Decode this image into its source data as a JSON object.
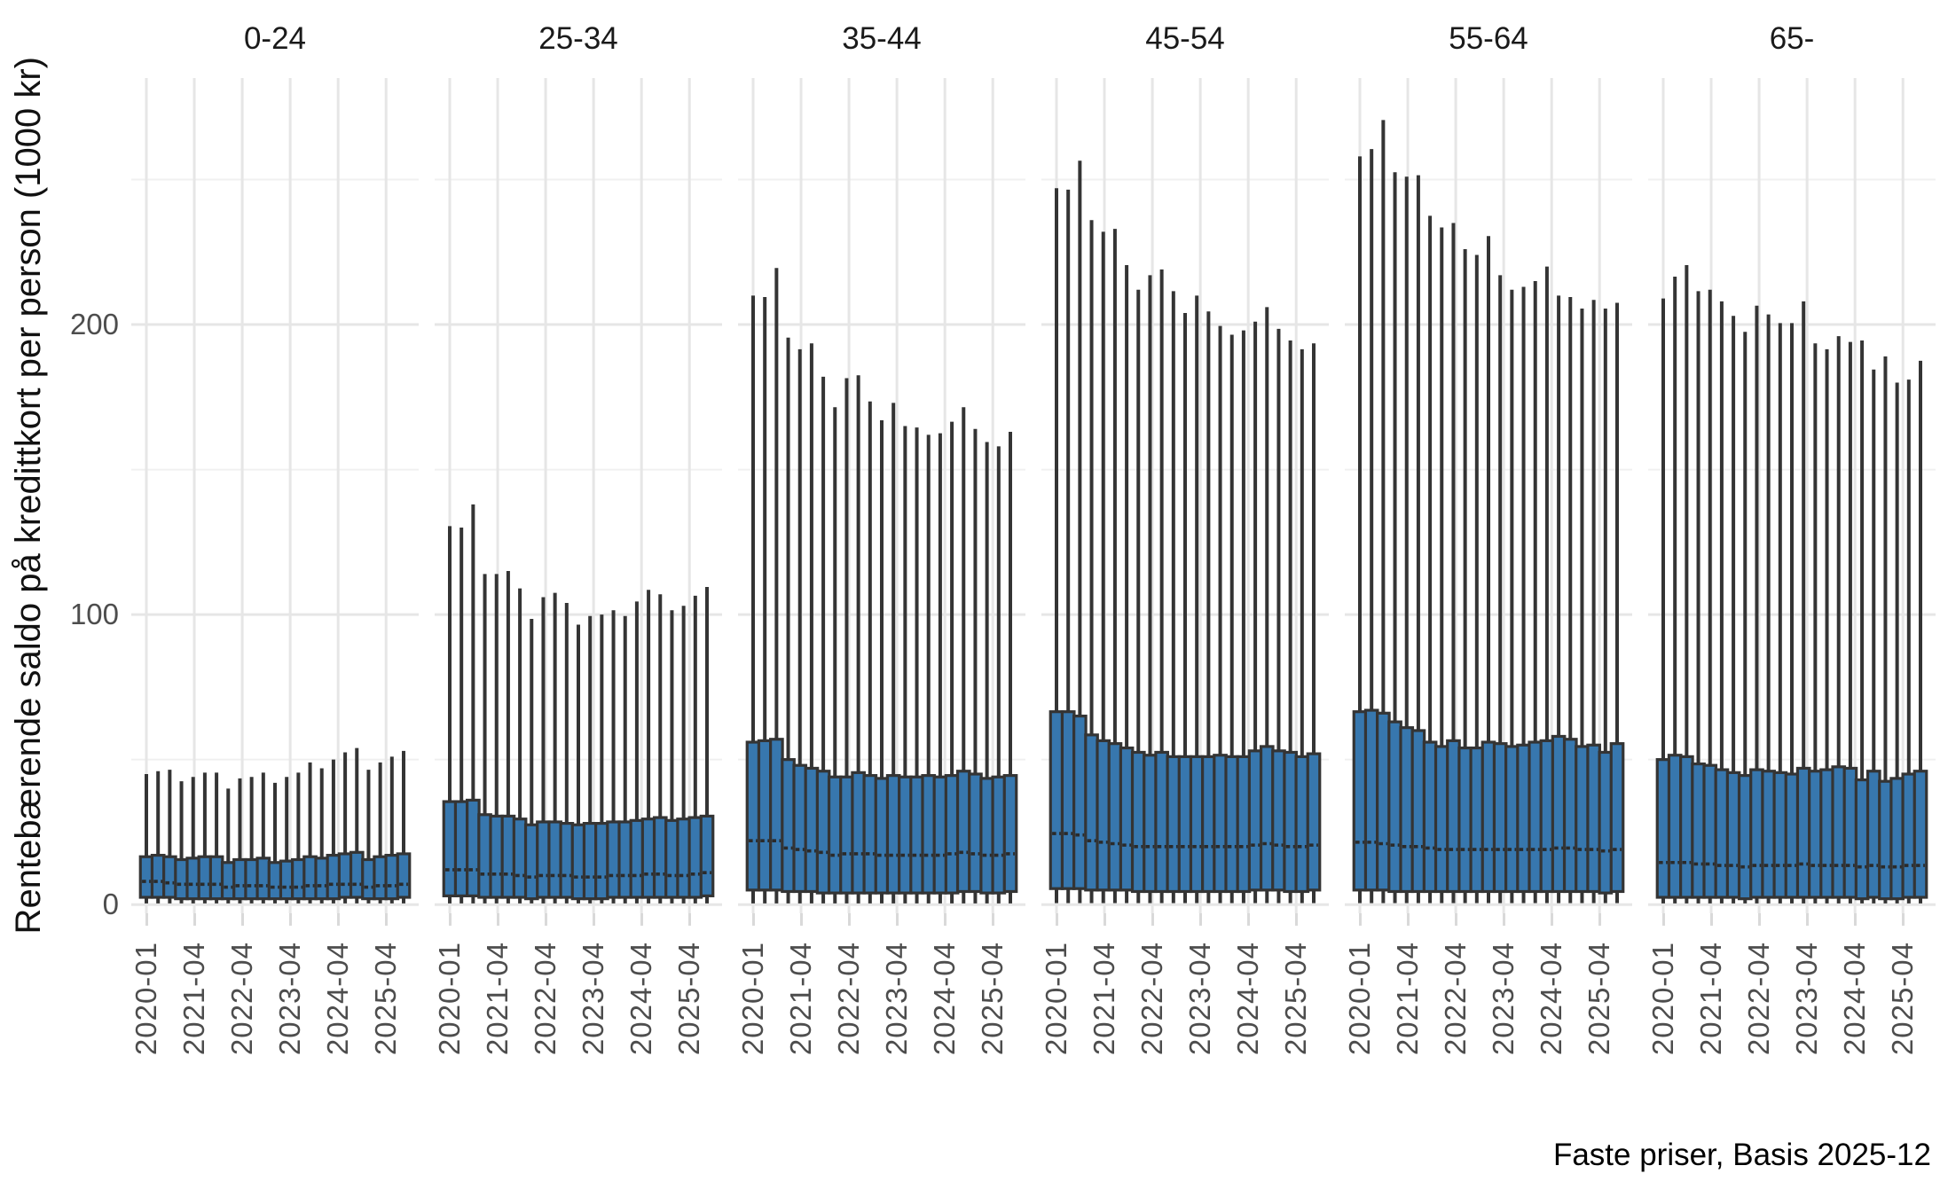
{
  "y_axis": {
    "title": "Rentebærende saldo på kredittkort per person (1000 kr)",
    "ticks": [
      {
        "label": "0",
        "value": 0
      },
      {
        "label": "100",
        "value": 100
      },
      {
        "label": "200",
        "value": 200
      }
    ],
    "minor_gridlines": [
      50,
      150,
      250
    ],
    "range": [
      -3,
      285
    ]
  },
  "x_axis": {
    "tick_labels": [
      "2020-01",
      "2021-04",
      "2022-04",
      "2023-04",
      "2024-04",
      "2025-04"
    ],
    "tick_positions": [
      0,
      4.1,
      8.2,
      12.3,
      16.4,
      20.5
    ]
  },
  "caption": "Faste priser, Basis 2025-12",
  "colors": {
    "box_fill": "#3777ae",
    "box_border": "#343434",
    "whisker": "#343434",
    "median": "#2a2a2a",
    "grid_major": "#e6e6e6",
    "grid_minor": "#f0f0f0",
    "tick_mark": "#d9d9d9",
    "axis_text": "#4d4d4d",
    "title_text": "#1a1a1a",
    "background": "#ffffff"
  },
  "chart_data": {
    "type": "boxplot",
    "title": "",
    "xlabel": "",
    "ylabel": "Rentebærende saldo på kredittkort per person (1000 kr)",
    "grid": true,
    "quarters": [
      "2020-01",
      "2020-04",
      "2020-07",
      "2020-10",
      "2021-01",
      "2021-04",
      "2021-07",
      "2021-10",
      "2022-01",
      "2022-04",
      "2022-07",
      "2022-10",
      "2023-01",
      "2023-04",
      "2023-07",
      "2023-10",
      "2024-01",
      "2024-04",
      "2024-07",
      "2024-10",
      "2025-01",
      "2025-04",
      "2025-07"
    ],
    "facets": [
      {
        "label": "0-24",
        "high": [
          45,
          46,
          46.5,
          42.5,
          44,
          45.5,
          45.5,
          40,
          43.5,
          44,
          45.5,
          42,
          44,
          45.5,
          49,
          47,
          50,
          52.5,
          54,
          46.5,
          49,
          51,
          53
        ],
        "q3": [
          16.5,
          17,
          16.5,
          15.5,
          16,
          16.5,
          16.5,
          14.5,
          15.5,
          15.5,
          16,
          14.5,
          15,
          15.5,
          16.5,
          16,
          17,
          17.5,
          18,
          15.5,
          16.5,
          17,
          17.5
        ],
        "median": [
          8,
          8,
          7.5,
          7,
          7,
          7,
          7,
          6,
          6.5,
          6.5,
          6.5,
          6,
          6,
          6,
          6.5,
          6.5,
          7,
          7,
          7,
          6,
          6.5,
          6.5,
          7
        ],
        "q1": [
          2.5,
          2.5,
          2.5,
          2,
          2,
          2,
          2,
          2,
          2,
          2,
          2,
          2,
          2,
          2,
          2,
          2,
          2,
          2.5,
          2.5,
          2,
          2,
          2,
          2.5
        ],
        "low": 0.4
      },
      {
        "label": "25-34",
        "high": [
          130.5,
          130,
          138,
          114,
          114,
          115,
          109,
          98.5,
          106,
          107.5,
          104,
          96.5,
          99.5,
          100,
          101.5,
          99.5,
          104.5,
          108.5,
          107,
          101.5,
          103,
          106.5,
          109.5
        ],
        "q3": [
          35.5,
          35.5,
          36,
          31,
          30.5,
          30.5,
          29.5,
          27.5,
          28.5,
          28.5,
          28,
          27.5,
          28,
          28,
          28.5,
          28.5,
          29,
          29.5,
          30,
          29,
          29.5,
          30,
          30.5
        ],
        "median": [
          12,
          12,
          12,
          10.5,
          10.5,
          10.5,
          10,
          9.5,
          10,
          10,
          10,
          9.5,
          9.5,
          9.5,
          10,
          10,
          10,
          10.5,
          10.5,
          10,
          10,
          10.5,
          11
        ],
        "q1": [
          3,
          3,
          3,
          2.5,
          2.5,
          2.5,
          2.5,
          2,
          2.5,
          2.5,
          2.5,
          2,
          2,
          2,
          2.5,
          2.5,
          2.5,
          2.5,
          2.5,
          2.5,
          2.5,
          2.5,
          3
        ],
        "low": 0.4
      },
      {
        "label": "35-44",
        "high": [
          210,
          209.5,
          219.5,
          195.5,
          191.5,
          193.5,
          182,
          171.5,
          181.5,
          182.5,
          173.5,
          167,
          173,
          165,
          164.5,
          162,
          162.5,
          166.5,
          171.5,
          164,
          159.5,
          158,
          163
        ],
        "q3": [
          56,
          56.5,
          57,
          50,
          48,
          47,
          46,
          44,
          44,
          45.5,
          44.5,
          43.5,
          44.5,
          44,
          44,
          44.5,
          44,
          44.5,
          46,
          45,
          43.5,
          44,
          44.5
        ],
        "median": [
          22,
          22,
          22,
          19.5,
          19,
          18.5,
          18,
          17,
          17.5,
          17.5,
          17.5,
          17,
          17,
          17,
          17,
          17,
          17,
          17.5,
          18,
          17.5,
          17,
          17,
          17.5
        ],
        "q1": [
          5,
          5,
          5,
          4.5,
          4.5,
          4.5,
          4,
          4,
          4,
          4,
          4,
          4,
          4,
          4,
          4,
          4,
          4,
          4,
          4.5,
          4.5,
          4,
          4,
          4.5
        ],
        "low": 0.4
      },
      {
        "label": "45-54",
        "high": [
          247,
          246.5,
          256.5,
          236,
          232,
          233,
          220.5,
          212,
          217,
          219,
          211.5,
          204,
          210,
          204.5,
          199.5,
          196.5,
          198,
          201,
          206,
          198.5,
          194.5,
          191.5,
          193.5
        ],
        "q3": [
          66.5,
          66.5,
          65,
          58.5,
          56.5,
          55.5,
          54,
          52.5,
          51.5,
          52.5,
          51,
          51,
          51,
          51,
          51.5,
          51,
          51,
          53,
          54.5,
          53,
          52.5,
          51,
          52
        ],
        "median": [
          24.5,
          24.5,
          24,
          22,
          21.5,
          21,
          20.5,
          20,
          20,
          20,
          20,
          20,
          20,
          20,
          20,
          20,
          20,
          20.5,
          21,
          20.5,
          20,
          20,
          20.5
        ],
        "q1": [
          5.5,
          5.5,
          5.5,
          5,
          5,
          5,
          5,
          4.5,
          4.5,
          4.5,
          4.5,
          4.5,
          4.5,
          4.5,
          4.5,
          4.5,
          4.5,
          5,
          5,
          5,
          4.5,
          4.5,
          5
        ],
        "low": 0.5
      },
      {
        "label": "55-64",
        "high": [
          258,
          260.5,
          270.5,
          252.5,
          251,
          251.5,
          237.5,
          233.5,
          235,
          226,
          224,
          230.5,
          217,
          212,
          213,
          215,
          220,
          210,
          209.5,
          205.5,
          208.5,
          205.5,
          207.5
        ],
        "q3": [
          66.5,
          67,
          66,
          63,
          61,
          60,
          56,
          54.5,
          56.5,
          54,
          54,
          56,
          55.5,
          54.5,
          55,
          56,
          56.5,
          58,
          57,
          54.5,
          55,
          52.5,
          55.5
        ],
        "median": [
          21.5,
          21.5,
          21,
          20.5,
          20,
          20,
          19.5,
          19,
          19,
          19,
          19,
          19,
          19,
          19,
          19,
          19,
          19,
          19.5,
          19.5,
          19,
          19,
          18.5,
          19
        ],
        "q1": [
          5,
          5,
          5,
          4.5,
          4.5,
          4.5,
          4.5,
          4.5,
          4.5,
          4.5,
          4.5,
          4.5,
          4.5,
          4.5,
          4.5,
          4.5,
          4.5,
          4.5,
          4.5,
          4.5,
          4.5,
          4,
          4.5
        ],
        "low": 0.5
      },
      {
        "label": "65-",
        "high": [
          209,
          216.5,
          220.5,
          211.5,
          212,
          208,
          203,
          197.5,
          206.5,
          203.5,
          200.5,
          200.5,
          208,
          193.5,
          191.5,
          196,
          194,
          194.5,
          184.5,
          189,
          180,
          181,
          187.5
        ],
        "q3": [
          50,
          51.5,
          51,
          48.5,
          48,
          46.5,
          45.5,
          44.5,
          46.5,
          46,
          45.5,
          45,
          47,
          46,
          46.5,
          47.5,
          47,
          43,
          46,
          42.5,
          43.5,
          45,
          46
        ],
        "median": [
          14.5,
          14.5,
          14.5,
          14,
          14,
          13.5,
          13.5,
          13,
          13.5,
          13.5,
          13.5,
          13.5,
          14,
          13.5,
          13.5,
          13.5,
          13.5,
          13,
          13.5,
          13,
          13,
          13.5,
          13.5
        ],
        "q1": [
          2.5,
          2.5,
          2.5,
          2.5,
          2.5,
          2.5,
          2.5,
          2,
          2.5,
          2.5,
          2.5,
          2.5,
          2.5,
          2.5,
          2.5,
          2.5,
          2.5,
          2,
          2.5,
          2,
          2,
          2.5,
          2.5
        ],
        "low": 0.4
      }
    ]
  }
}
